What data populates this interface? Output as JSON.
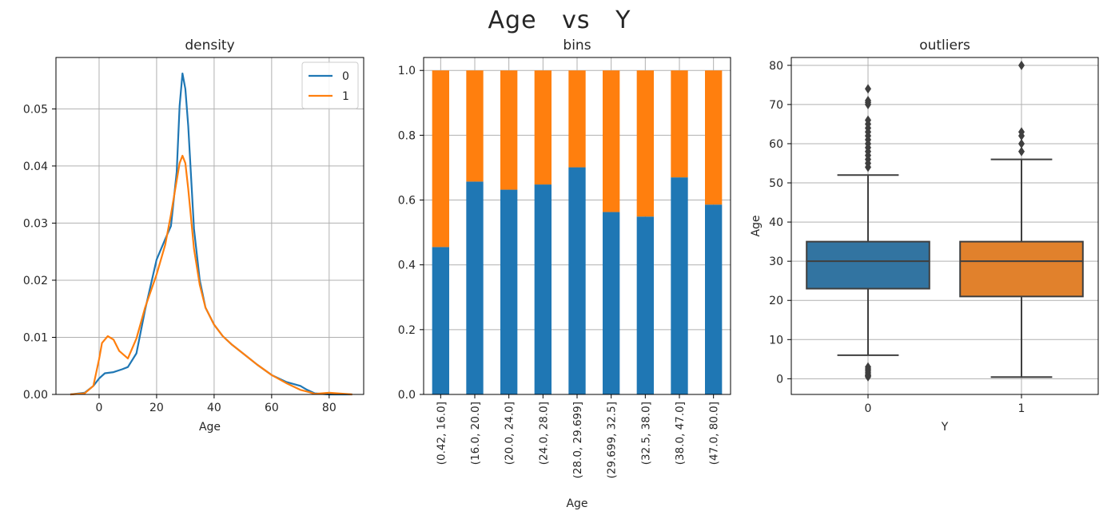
{
  "suptitle": "Age   vs   Y",
  "colors": {
    "series0": "#1f77b4",
    "series1": "#ff7f0e",
    "box0": "#3274a1",
    "box1": "#e1812c",
    "grid": "#b0b0b0"
  },
  "chart_data": [
    {
      "type": "line",
      "title": "density",
      "xlabel": "Age",
      "ylabel": "",
      "xlim": [
        -15,
        92
      ],
      "ylim": [
        0,
        0.059
      ],
      "xticks": [
        0,
        20,
        40,
        60,
        80
      ],
      "yticks": [
        0.0,
        0.01,
        0.02,
        0.03,
        0.04,
        0.05
      ],
      "ytick_labels": [
        "0.00",
        "0.01",
        "0.02",
        "0.03",
        "0.04",
        "0.05"
      ],
      "grid": true,
      "legend": "top-right",
      "series": [
        {
          "name": "0",
          "x": [
            -10,
            -5,
            -2,
            0,
            2,
            5,
            8,
            10,
            13,
            16,
            20,
            23,
            25,
            27,
            28,
            29,
            30,
            31,
            32,
            33,
            35,
            37,
            40,
            43,
            46,
            50,
            55,
            60,
            65,
            70,
            72,
            75,
            80,
            88
          ],
          "y": [
            0,
            0.0003,
            0.0015,
            0.0028,
            0.0037,
            0.0039,
            0.0044,
            0.0048,
            0.0072,
            0.0148,
            0.0236,
            0.0272,
            0.0295,
            0.039,
            0.0505,
            0.0562,
            0.0535,
            0.047,
            0.038,
            0.029,
            0.02,
            0.0152,
            0.0122,
            0.0102,
            0.0088,
            0.0072,
            0.0052,
            0.0034,
            0.0022,
            0.0015,
            0.0009,
            0.0002,
            0,
            0
          ]
        },
        {
          "name": "1",
          "x": [
            -10,
            -5,
            -2,
            0,
            1,
            3,
            5,
            7,
            10,
            13,
            16,
            20,
            23,
            25,
            27,
            28,
            29,
            30,
            31,
            33,
            35,
            37,
            40,
            43,
            46,
            50,
            55,
            60,
            65,
            70,
            73,
            75,
            80,
            88
          ],
          "y": [
            0,
            0.0002,
            0.0015,
            0.0062,
            0.009,
            0.0102,
            0.0096,
            0.0076,
            0.0063,
            0.0098,
            0.0152,
            0.021,
            0.0262,
            0.0315,
            0.0375,
            0.0405,
            0.0418,
            0.0405,
            0.036,
            0.0255,
            0.0192,
            0.0152,
            0.0122,
            0.0102,
            0.0088,
            0.0072,
            0.0052,
            0.0034,
            0.002,
            0.0008,
            0.0004,
            0.0001,
            0.0003,
            0
          ]
        }
      ]
    },
    {
      "type": "bar",
      "title": "bins",
      "xlabel": "Age",
      "ylabel": "",
      "stacked": true,
      "ylim": [
        0,
        1.04
      ],
      "yticks": [
        0.0,
        0.2,
        0.4,
        0.6,
        0.8,
        1.0
      ],
      "ytick_labels": [
        "0.0",
        "0.2",
        "0.4",
        "0.6",
        "0.8",
        "1.0"
      ],
      "grid": true,
      "categories": [
        "(0.42, 16.0]",
        "(16.0, 20.0]",
        "(20.0, 24.0]",
        "(24.0, 28.0]",
        "(28.0, 29.699]",
        "(29.699, 32.5]",
        "(32.5, 38.0]",
        "(38.0, 47.0]",
        "(47.0, 80.0]"
      ],
      "series": [
        {
          "values": [
            0.455,
            0.657,
            0.632,
            0.648,
            0.701,
            0.563,
            0.549,
            0.67,
            0.586
          ]
        },
        {
          "values": [
            0.545,
            0.343,
            0.368,
            0.352,
            0.299,
            0.437,
            0.451,
            0.33,
            0.414
          ]
        }
      ]
    },
    {
      "type": "box",
      "title": "outliers",
      "xlabel": "Y",
      "ylabel": "Age",
      "ylim": [
        -4,
        82
      ],
      "yticks": [
        0,
        10,
        20,
        30,
        40,
        50,
        60,
        70,
        80
      ],
      "grid": true,
      "categories": [
        "0",
        "1"
      ],
      "boxes": [
        {
          "whisker_low": 6,
          "q1": 23,
          "median": 30,
          "q3": 35,
          "whisker_high": 52,
          "outliers": [
            0.5,
            0.8,
            1.0,
            1.5,
            2.0,
            2.5,
            3.0,
            54,
            55,
            56,
            57,
            58,
            59,
            60,
            61,
            62,
            63,
            64,
            65,
            66,
            70,
            70.5,
            71,
            74
          ]
        },
        {
          "whisker_low": 0.42,
          "q1": 21,
          "median": 30,
          "q3": 35,
          "whisker_high": 56,
          "outliers": [
            58,
            60,
            62,
            63,
            80
          ]
        }
      ]
    }
  ]
}
